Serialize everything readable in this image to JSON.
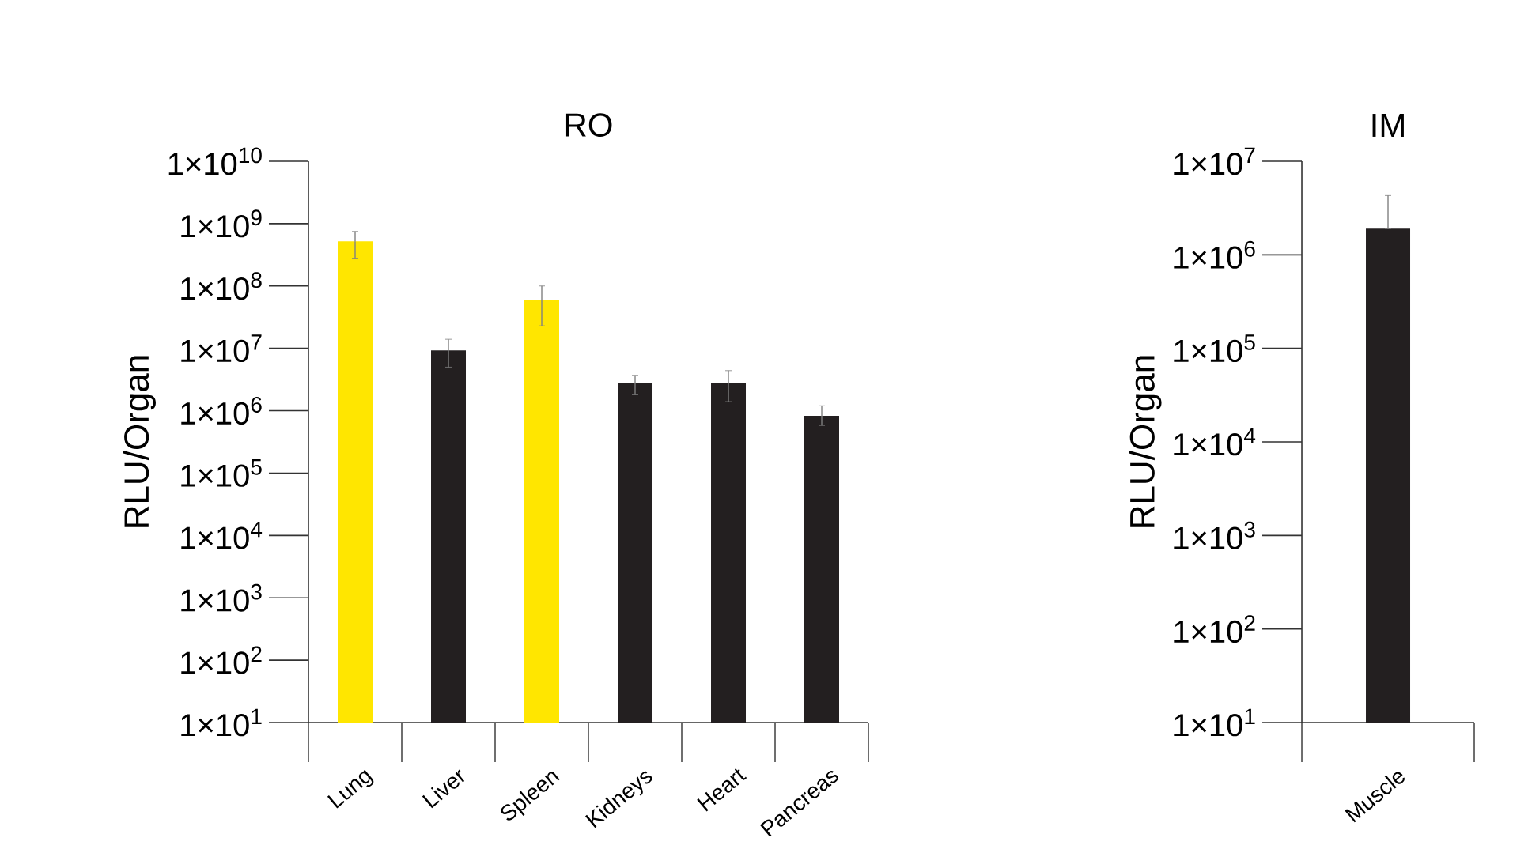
{
  "chart_data": [
    {
      "type": "bar",
      "title": "RO",
      "ylabel": "RLU/Organ",
      "log": "y",
      "categories": [
        "Lung",
        "Liver",
        "Spleen",
        "Kidneys",
        "Heart",
        "Pancreas"
      ],
      "values": [
        520000000,
        9300000,
        60000000,
        2800000,
        2800000,
        830000
      ],
      "colors": [
        "#ffe600",
        "#231f20",
        "#ffe600",
        "#231f20",
        "#231f20",
        "#231f20"
      ],
      "errors": [
        [
          280000000,
          750000000
        ],
        [
          5000000,
          14000000
        ],
        [
          23000000,
          100000000
        ],
        [
          1800000,
          3700000
        ],
        [
          1400000,
          4400000
        ],
        [
          580000,
          1200000
        ]
      ],
      "ylim": [
        10,
        10000000000
      ],
      "yticks": [
        {
          "value": 10,
          "label": "1×10$^{1}$"
        },
        {
          "value": 100,
          "label": "1×10$^{2}$"
        },
        {
          "value": 1000,
          "label": "1×10$^{3}$"
        },
        {
          "value": 10000,
          "label": "1×10$^{4}$"
        },
        {
          "value": 100000,
          "label": "1×10$^{5}$"
        },
        {
          "value": 1000000,
          "label": "1×10$^{6}$"
        },
        {
          "value": 10000000,
          "label": "1×10$^{7}$"
        },
        {
          "value": 100000000,
          "label": "1×10$^{8}$"
        },
        {
          "value": 1000000000,
          "label": "1×10$^{9}$"
        },
        {
          "value": 10000000000,
          "label": "1×10$^{10}$"
        }
      ]
    },
    {
      "type": "bar",
      "title": "IM",
      "ylabel": "RLU/Organ",
      "log": "y",
      "categories": [
        "Muscle"
      ],
      "values": [
        1900000
      ],
      "colors": [
        "#231f20"
      ],
      "errors": [
        [
          1900000,
          4300000
        ]
      ],
      "ylim": [
        10,
        10000000
      ],
      "yticks": [
        {
          "value": 10,
          "label": "1×10$^{1}$"
        },
        {
          "value": 100,
          "label": "1×10$^{2}$"
        },
        {
          "value": 1000,
          "label": "1×10$^{3}$"
        },
        {
          "value": 10000,
          "label": "1×10$^{4}$"
        },
        {
          "value": 100000,
          "label": "1×10$^{5}$"
        },
        {
          "value": 1000000,
          "label": "1×10$^{6}$"
        },
        {
          "value": 10000000,
          "label": "1×10$^{7}$"
        }
      ]
    }
  ]
}
